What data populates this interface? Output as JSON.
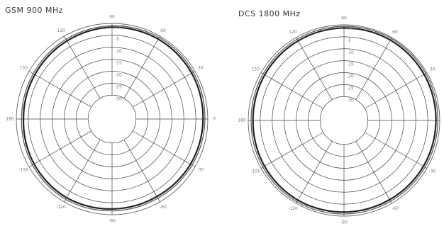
{
  "chart_data": [
    {
      "type": "polar-line",
      "title": "GSM 900 MHz",
      "angle_ticks": [
        "90",
        "60",
        "30",
        "0",
        "-30",
        "-60",
        "-90",
        "-120",
        "-150",
        "180",
        "150",
        "120"
      ],
      "radial_ticks": [
        "0 dB",
        "-5",
        "-10",
        "-15",
        "-20",
        "-25",
        "-30"
      ],
      "rlim_db": [
        -40,
        0
      ],
      "grid": true,
      "series": [
        {
          "angles_deg": [
            0,
            30,
            60,
            90,
            120,
            150,
            180,
            210,
            240,
            270,
            300,
            330
          ],
          "values_db": [
            -1.2,
            -0.8,
            -0.6,
            -1.0,
            -1.5,
            -2.0,
            -2.2,
            -1.6,
            -1.2,
            -1.6,
            -1.8,
            -1.4
          ],
          "color": "#555555"
        },
        {
          "angles_deg": [
            0,
            30,
            60,
            90,
            120,
            150,
            180,
            210,
            240,
            270,
            300,
            330
          ],
          "values_db": [
            -2.0,
            -1.6,
            -1.4,
            -1.6,
            -2.3,
            -2.8,
            -3.0,
            -2.4,
            -2.0,
            -2.4,
            -2.6,
            -2.2
          ],
          "color": "#222222"
        }
      ]
    },
    {
      "type": "polar-line",
      "title": "DCS 1800 MHz",
      "angle_ticks": [
        "90",
        "60",
        "30",
        "0",
        "-30",
        "-60",
        "-90",
        "-120",
        "-150",
        "180",
        "150",
        "120"
      ],
      "radial_ticks": [
        "0 dB",
        "-5",
        "-10",
        "-15",
        "-20",
        "-25",
        "-30"
      ],
      "rlim_db": [
        -40,
        0
      ],
      "grid": true,
      "series": [
        {
          "angles_deg": [
            0,
            30,
            60,
            90,
            120,
            150,
            180,
            210,
            240,
            270,
            300,
            330
          ],
          "values_db": [
            -0.8,
            -0.6,
            -0.4,
            -0.6,
            -0.8,
            -1.0,
            -1.2,
            -0.9,
            -0.7,
            -0.9,
            -1.0,
            -0.9
          ],
          "color": "#555555"
        },
        {
          "angles_deg": [
            0,
            30,
            60,
            90,
            120,
            150,
            180,
            210,
            240,
            270,
            300,
            330
          ],
          "values_db": [
            -1.6,
            -1.4,
            -1.2,
            -1.3,
            -1.6,
            -1.8,
            -2.0,
            -1.7,
            -1.5,
            -1.7,
            -1.8,
            -1.7
          ],
          "color": "#222222"
        }
      ]
    }
  ]
}
